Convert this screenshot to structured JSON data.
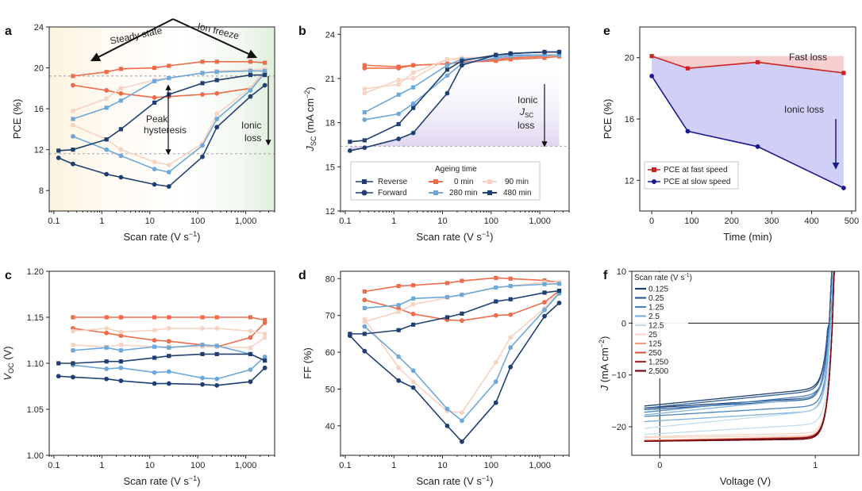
{
  "colors": {
    "t0": "#ef6c4a",
    "t90": "#f8d2c2",
    "t280": "#6ea8d8",
    "t480": "#1f3f73",
    "jv": [
      "#1f3f73",
      "#2b5c97",
      "#4a82bf",
      "#7fb1da",
      "#c0dbef",
      "#f6d5c6",
      "#f0a082",
      "#dd5a45",
      "#b4282e",
      "#6e0d15"
    ],
    "fast": "#cc2222",
    "slow": "#1a1a8c"
  },
  "panel_labels": {
    "a": "a",
    "b": "b",
    "c": "c",
    "d": "d",
    "e": "e",
    "f": "f"
  },
  "annotations": {
    "steady_state": "Steady state",
    "ion_freeze": "Ion freeze",
    "peak_hyst_1": "Peak",
    "peak_hyst_2": "hysteresis",
    "ionic_loss_a_1": "Ionic",
    "ionic_loss_a_2": "loss",
    "ionic_jsc_1": "Ionic",
    "ionic_jsc_2": "J",
    "ionic_jsc_sub": "SC",
    "ionic_jsc_3": "loss",
    "fast_loss": "Fast loss",
    "ionic_loss_e": "Ionic loss"
  },
  "legend_b": {
    "reverse": "Reverse",
    "forward": "Forward",
    "ageing_title": "Ageing time",
    "t0": "0 min",
    "t90": "90 min",
    "t280": "280 min",
    "t480": "480 min"
  },
  "legend_e": {
    "fast": "PCE at fast speed",
    "slow": "PCE at slow speed"
  },
  "legend_f": {
    "title": "Scan rate (V s",
    "title_sup": "-1",
    "title_end": ")",
    "rates": [
      "0.125",
      "0.25",
      "1.25",
      "2.5",
      "12.5",
      "25",
      "125",
      "250",
      "1,250",
      "2,500"
    ]
  },
  "chart_data": [
    {
      "panel": "a",
      "type": "line",
      "xlabel": "Scan rate (V s",
      "xlabel_sup": "−1",
      "xlabel_end": ")",
      "ylabel": "PCE (%)",
      "xscale": "log",
      "xlim": [
        0.08,
        4000
      ],
      "ylim": [
        6,
        24
      ],
      "xticks": [
        0.1,
        1,
        10,
        100,
        1000
      ],
      "xticklabels": [
        "0.1",
        "1",
        "10",
        "100",
        "1,000"
      ],
      "yticks": [
        8,
        12,
        16,
        20,
        24
      ],
      "yticklabels": [
        "8",
        "12",
        "16",
        "20",
        "24"
      ],
      "reference_y": [
        11.6,
        19.2
      ],
      "x": [
        0.125,
        0.25,
        1.25,
        2.5,
        12.5,
        25,
        125,
        250,
        1250,
        2500
      ],
      "series": [
        {
          "color": "t0",
          "marker": "square",
          "values": [
            null,
            19.2,
            19.6,
            19.9,
            20.0,
            20.2,
            20.6,
            20.6,
            20.6,
            20.5
          ]
        },
        {
          "color": "t0",
          "marker": "circle",
          "values": [
            null,
            18.3,
            17.8,
            17.5,
            17.1,
            17.2,
            17.4,
            17.5,
            18.0,
            19.8
          ]
        },
        {
          "color": "t90",
          "marker": "square",
          "values": [
            null,
            15.8,
            17.0,
            18.0,
            18.8,
            19.0,
            19.5,
            19.7,
            19.8,
            19.9
          ]
        },
        {
          "color": "t90",
          "marker": "circle",
          "values": [
            null,
            14.4,
            13.0,
            12.0,
            10.8,
            10.5,
            12.6,
            15.5,
            18.0,
            19.8
          ]
        },
        {
          "color": "t280",
          "marker": "square",
          "values": [
            null,
            15.0,
            16.1,
            16.8,
            18.7,
            19.0,
            19.5,
            19.6,
            19.7,
            19.7
          ]
        },
        {
          "color": "t280",
          "marker": "circle",
          "values": [
            null,
            13.3,
            12.0,
            11.4,
            10.1,
            9.8,
            12.4,
            15.0,
            17.8,
            19.5
          ]
        },
        {
          "color": "t480",
          "marker": "square",
          "values": [
            11.9,
            12.0,
            13.0,
            14.0,
            16.6,
            17.4,
            18.5,
            18.8,
            19.3,
            19.3
          ]
        },
        {
          "color": "t480",
          "marker": "circle",
          "values": [
            11.2,
            10.6,
            9.6,
            9.3,
            8.6,
            8.4,
            11.3,
            14.2,
            17.2,
            18.3
          ]
        }
      ]
    },
    {
      "panel": "b",
      "type": "line",
      "xlabel": "Scan rate (V s",
      "xlabel_sup": "−1",
      "xlabel_end": ")",
      "ylabel": "J",
      "ylabel_sub": "SC",
      "ylabel_end": " (mA cm",
      "ylabel_sup": "−2",
      "ylabel_close": ")",
      "xscale": "log",
      "xlim": [
        0.08,
        4000
      ],
      "ylim": [
        12,
        24.5
      ],
      "xticks": [
        0.1,
        1,
        10,
        100,
        1000
      ],
      "xticklabels": [
        "0.1",
        "1",
        "10",
        "100",
        "1,000"
      ],
      "yticks": [
        12,
        15,
        18,
        21,
        24
      ],
      "yticklabels": [
        "12",
        "15",
        "18",
        "21",
        "24"
      ],
      "reference_y": [
        16.4
      ],
      "x": [
        0.125,
        0.25,
        1.25,
        2.5,
        12.5,
        25,
        125,
        250,
        1250,
        2500
      ],
      "series": [
        {
          "color": "t0",
          "marker": "square",
          "values": [
            null,
            21.9,
            21.8,
            21.9,
            22.0,
            22.1,
            22.2,
            22.3,
            22.4,
            22.5
          ]
        },
        {
          "color": "t0",
          "marker": "circle",
          "values": [
            null,
            21.7,
            21.7,
            21.9,
            22.0,
            22.1,
            22.3,
            22.4,
            22.5,
            22.6
          ]
        },
        {
          "color": "t90",
          "marker": "square",
          "values": [
            null,
            20.3,
            20.6,
            21.4,
            22.3,
            22.4,
            22.5,
            22.6,
            22.6,
            22.6
          ]
        },
        {
          "color": "t90",
          "marker": "circle",
          "values": [
            null,
            20.0,
            20.9,
            21.0,
            22.3,
            22.3,
            22.5,
            22.6,
            22.6,
            22.6
          ]
        },
        {
          "color": "t280",
          "marker": "square",
          "values": [
            null,
            18.7,
            19.9,
            20.4,
            21.9,
            22.3,
            22.5,
            22.6,
            22.6,
            22.6
          ]
        },
        {
          "color": "t280",
          "marker": "circle",
          "values": [
            null,
            18.2,
            18.6,
            19.3,
            21.2,
            22.0,
            22.4,
            22.5,
            22.6,
            22.6
          ]
        },
        {
          "color": "t480",
          "marker": "square",
          "values": [
            16.7,
            16.8,
            17.9,
            19.0,
            21.6,
            22.2,
            22.6,
            22.7,
            22.8,
            22.8
          ]
        },
        {
          "color": "t480",
          "marker": "circle",
          "values": [
            16.1,
            16.3,
            16.9,
            17.3,
            20.0,
            21.9,
            22.6,
            22.7,
            22.8,
            22.8
          ]
        }
      ]
    },
    {
      "panel": "c",
      "type": "line",
      "xlabel": "Scan rate (V s",
      "xlabel_sup": "−1",
      "xlabel_end": ")",
      "ylabel": "V",
      "ylabel_sub": "OC",
      "ylabel_end": " (V)",
      "xscale": "log",
      "xlim": [
        0.08,
        4000
      ],
      "ylim": [
        1.0,
        1.2
      ],
      "xticks": [
        0.1,
        1,
        10,
        100,
        1000
      ],
      "xticklabels": [
        "0.1",
        "1",
        "10",
        "100",
        "1,000"
      ],
      "yticks": [
        1.0,
        1.05,
        1.1,
        1.15,
        1.2
      ],
      "yticklabels": [
        "1.00",
        "1.05",
        "1.10",
        "1.15",
        "1.20"
      ],
      "x": [
        0.125,
        0.25,
        1.25,
        2.5,
        12.5,
        25,
        125,
        250,
        1250,
        2500
      ],
      "series": [
        {
          "color": "t0",
          "marker": "square",
          "values": [
            null,
            1.15,
            1.15,
            1.15,
            1.15,
            1.15,
            1.15,
            1.15,
            1.15,
            1.147
          ]
        },
        {
          "color": "t0",
          "marker": "circle",
          "values": [
            null,
            1.138,
            1.133,
            1.13,
            1.125,
            1.124,
            1.12,
            1.118,
            1.128,
            1.144
          ]
        },
        {
          "color": "t90",
          "marker": "square",
          "values": [
            null,
            1.12,
            1.118,
            1.12,
            1.118,
            1.118,
            1.118,
            1.118,
            1.117,
            1.128
          ]
        },
        {
          "color": "t90",
          "marker": "circle",
          "values": [
            null,
            1.135,
            1.138,
            1.134,
            1.136,
            1.138,
            1.138,
            1.138,
            1.135,
            1.132
          ]
        },
        {
          "color": "t280",
          "marker": "square",
          "values": [
            null,
            1.114,
            1.117,
            1.114,
            1.118,
            1.117,
            1.12,
            1.119,
            1.11,
            1.103
          ]
        },
        {
          "color": "t280",
          "marker": "circle",
          "values": [
            null,
            1.098,
            1.094,
            1.095,
            1.09,
            1.091,
            1.084,
            1.083,
            1.093,
            1.107
          ]
        },
        {
          "color": "t480",
          "marker": "square",
          "values": [
            1.1,
            1.1,
            1.102,
            1.102,
            1.106,
            1.108,
            1.11,
            1.11,
            1.11,
            1.103
          ]
        },
        {
          "color": "t480",
          "marker": "circle",
          "values": [
            1.086,
            1.085,
            1.083,
            1.081,
            1.078,
            1.078,
            1.077,
            1.076,
            1.08,
            1.095
          ]
        }
      ]
    },
    {
      "panel": "d",
      "type": "line",
      "xlabel": "Scan rate (V s",
      "xlabel_sup": "−1",
      "xlabel_end": ")",
      "ylabel": "FF (%)",
      "xscale": "log",
      "xlim": [
        0.08,
        4000
      ],
      "ylim": [
        32,
        82
      ],
      "xticks": [
        0.1,
        1,
        10,
        100,
        1000
      ],
      "xticklabels": [
        "0.1",
        "1",
        "10",
        "100",
        "1,000"
      ],
      "yticks": [
        40,
        50,
        60,
        70,
        80
      ],
      "yticklabels": [
        "40",
        "50",
        "60",
        "70",
        "80"
      ],
      "x": [
        0.125,
        0.25,
        1.25,
        2.5,
        12.5,
        25,
        125,
        250,
        1250,
        2500
      ],
      "series": [
        {
          "color": "t0",
          "marker": "square",
          "values": [
            null,
            76.5,
            78.0,
            78.2,
            78.8,
            79.4,
            80.2,
            80.0,
            79.5,
            79.0
          ]
        },
        {
          "color": "t0",
          "marker": "circle",
          "values": [
            null,
            74.2,
            71.8,
            70.4,
            68.8,
            68.6,
            70.0,
            70.2,
            73.6,
            76.7
          ]
        },
        {
          "color": "t90",
          "marker": "square",
          "values": [
            null,
            68.3,
            71.0,
            73.0,
            74.8,
            75.7,
            77.5,
            78.0,
            79.0,
            79.0
          ]
        },
        {
          "color": "t90",
          "marker": "circle",
          "values": [
            null,
            69.0,
            55.8,
            52.0,
            44.0,
            43.6,
            57.3,
            64.0,
            72.0,
            76.5
          ]
        },
        {
          "color": "t280",
          "marker": "square",
          "values": [
            null,
            72.0,
            72.8,
            74.6,
            75.0,
            75.6,
            77.6,
            78.0,
            78.5,
            78.6
          ]
        },
        {
          "color": "t280",
          "marker": "circle",
          "values": [
            null,
            67.0,
            58.8,
            55.0,
            44.6,
            41.4,
            52.0,
            61.3,
            71.5,
            76.0
          ]
        },
        {
          "color": "t480",
          "marker": "square",
          "values": [
            65.0,
            65.0,
            66.0,
            67.5,
            69.5,
            70.5,
            73.8,
            74.4,
            76.2,
            76.7
          ]
        },
        {
          "color": "t480",
          "marker": "circle",
          "values": [
            64.5,
            60.3,
            52.3,
            50.4,
            40.0,
            35.7,
            46.3,
            56.0,
            69.8,
            73.4
          ]
        }
      ]
    },
    {
      "panel": "e",
      "type": "line",
      "xlabel": "Time (min)",
      "ylabel": "PCE (%)",
      "xlim": [
        -30,
        510
      ],
      "ylim": [
        10,
        22
      ],
      "xticks": [
        0,
        100,
        200,
        300,
        400,
        500
      ],
      "xticklabels": [
        "0",
        "100",
        "200",
        "300",
        "400",
        "500"
      ],
      "yticks": [
        12,
        16,
        20
      ],
      "yticklabels": [
        "12",
        "16",
        "20"
      ],
      "x": [
        0,
        90,
        265,
        480
      ],
      "series": [
        {
          "name": "PCE at fast speed",
          "color": "fast",
          "marker": "square",
          "values": [
            20.1,
            19.3,
            19.7,
            19.0
          ]
        },
        {
          "name": "PCE at slow speed",
          "color": "slow",
          "marker": "circle",
          "values": [
            18.8,
            15.2,
            14.2,
            11.5
          ]
        }
      ]
    },
    {
      "panel": "f",
      "type": "line",
      "xlabel": "Voltage (V)",
      "ylabel": "J",
      "ylabel_end": " (mA cm",
      "ylabel_sup": "−2",
      "ylabel_close": ")",
      "xlim": [
        -0.18,
        1.28
      ],
      "ylim": [
        -25.5,
        10
      ],
      "xticks": [
        0,
        1
      ],
      "xticklabels": [
        "0",
        "1"
      ],
      "yticks": [
        -20,
        -10,
        0,
        10
      ],
      "yticklabels": [
        "−20",
        "−10",
        "0",
        "10"
      ],
      "series": [
        {
          "name": "0.125",
          "color_index": 0,
          "jsc_reverse": -16.4,
          "jsc_forward": -16.0,
          "voc": 1.09
        },
        {
          "name": "0.25",
          "color_index": 1,
          "jsc_reverse": -16.7,
          "jsc_forward": -16.4,
          "voc": 1.09
        },
        {
          "name": "1.25",
          "color_index": 2,
          "jsc_reverse": -18.0,
          "jsc_forward": -17.2,
          "voc": 1.1
        },
        {
          "name": "2.5",
          "color_index": 3,
          "jsc_reverse": -19.0,
          "jsc_forward": -17.7,
          "voc": 1.1
        },
        {
          "name": "12.5",
          "color_index": 4,
          "jsc_reverse": -21.5,
          "jsc_forward": -20.3,
          "voc": 1.11
        },
        {
          "name": "25",
          "color_index": 5,
          "jsc_reverse": -22.1,
          "jsc_forward": -21.9,
          "voc": 1.11
        },
        {
          "name": "125",
          "color_index": 6,
          "jsc_reverse": -22.6,
          "jsc_forward": -22.6,
          "voc": 1.11
        },
        {
          "name": "250",
          "color_index": 7,
          "jsc_reverse": -22.7,
          "jsc_forward": -22.7,
          "voc": 1.11
        },
        {
          "name": "1,250",
          "color_index": 8,
          "jsc_reverse": -22.8,
          "jsc_forward": -22.8,
          "voc": 1.11
        },
        {
          "name": "2,500",
          "color_index": 9,
          "jsc_reverse": -22.8,
          "jsc_forward": -22.8,
          "voc": 1.11
        }
      ]
    }
  ]
}
